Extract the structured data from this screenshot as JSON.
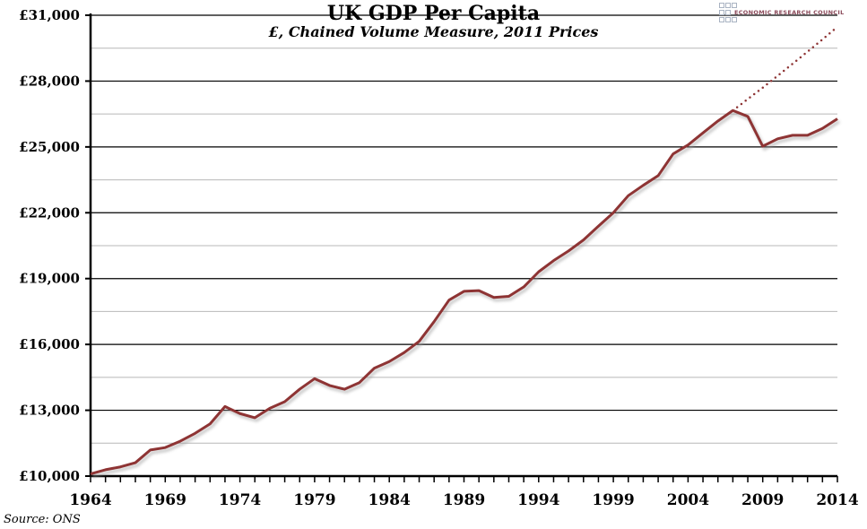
{
  "chart_data": {
    "type": "line",
    "title": "UK GDP Per Capita",
    "subtitle": "£, Chained Volume Measure, 2011 Prices",
    "source": "Source: ONS",
    "logo_text": "ECONOMIC RESEARCH COUNCIL",
    "xlim": [
      1964,
      2014
    ],
    "ylim": [
      10000,
      31000
    ],
    "x_ticks": [
      "1964",
      "1969",
      "1974",
      "1979",
      "1984",
      "1989",
      "1994",
      "1999",
      "2004",
      "2009",
      "2014"
    ],
    "y_ticks": [
      {
        "value": 10000,
        "label": "£10,000"
      },
      {
        "value": 13000,
        "label": "£13,000"
      },
      {
        "value": 16000,
        "label": "£16,000"
      },
      {
        "value": 19000,
        "label": "£19,000"
      },
      {
        "value": 22000,
        "label": "£22,000"
      },
      {
        "value": 25000,
        "label": "£25,000"
      },
      {
        "value": 28000,
        "label": "£28,000"
      },
      {
        "value": 31000,
        "label": "£31,000"
      }
    ],
    "minor_gridlines": [
      11500,
      14500,
      17500,
      20500,
      23500,
      26500,
      29500
    ],
    "grid": true,
    "series": [
      {
        "style": "solid",
        "color": "#8e3434",
        "x": [
          1964,
          1965,
          1966,
          1967,
          1968,
          1969,
          1970,
          1971,
          1972,
          1973,
          1974,
          1975,
          1976,
          1977,
          1978,
          1979,
          1980,
          1981,
          1982,
          1983,
          1984,
          1985,
          1986,
          1987,
          1988,
          1989,
          1990,
          1991,
          1992,
          1993,
          1994,
          1995,
          1996,
          1997,
          1998,
          1999,
          2000,
          2001,
          2002,
          2003,
          2004,
          2005,
          2006,
          2007,
          2008,
          2009,
          2010,
          2011,
          2012,
          2013,
          2014
        ],
        "y": [
          10100,
          10290,
          10420,
          10610,
          11190,
          11300,
          11590,
          11950,
          12380,
          13170,
          12850,
          12660,
          13090,
          13390,
          13960,
          14440,
          14130,
          13960,
          14260,
          14920,
          15220,
          15630,
          16140,
          17040,
          18020,
          18420,
          18450,
          18140,
          18190,
          18620,
          19310,
          19820,
          20260,
          20760,
          21390,
          22000,
          22780,
          23250,
          23690,
          24680,
          25090,
          25640,
          26180,
          26660,
          26390,
          25030,
          25370,
          25530,
          25530,
          25840,
          26280
        ]
      },
      {
        "style": "dotted",
        "color": "#8e3434",
        "x": [
          2007,
          2008,
          2009,
          2010,
          2011,
          2012,
          2013,
          2014
        ],
        "y": [
          26660,
          27180,
          27700,
          28240,
          28790,
          29340,
          29900,
          30470
        ]
      }
    ]
  }
}
